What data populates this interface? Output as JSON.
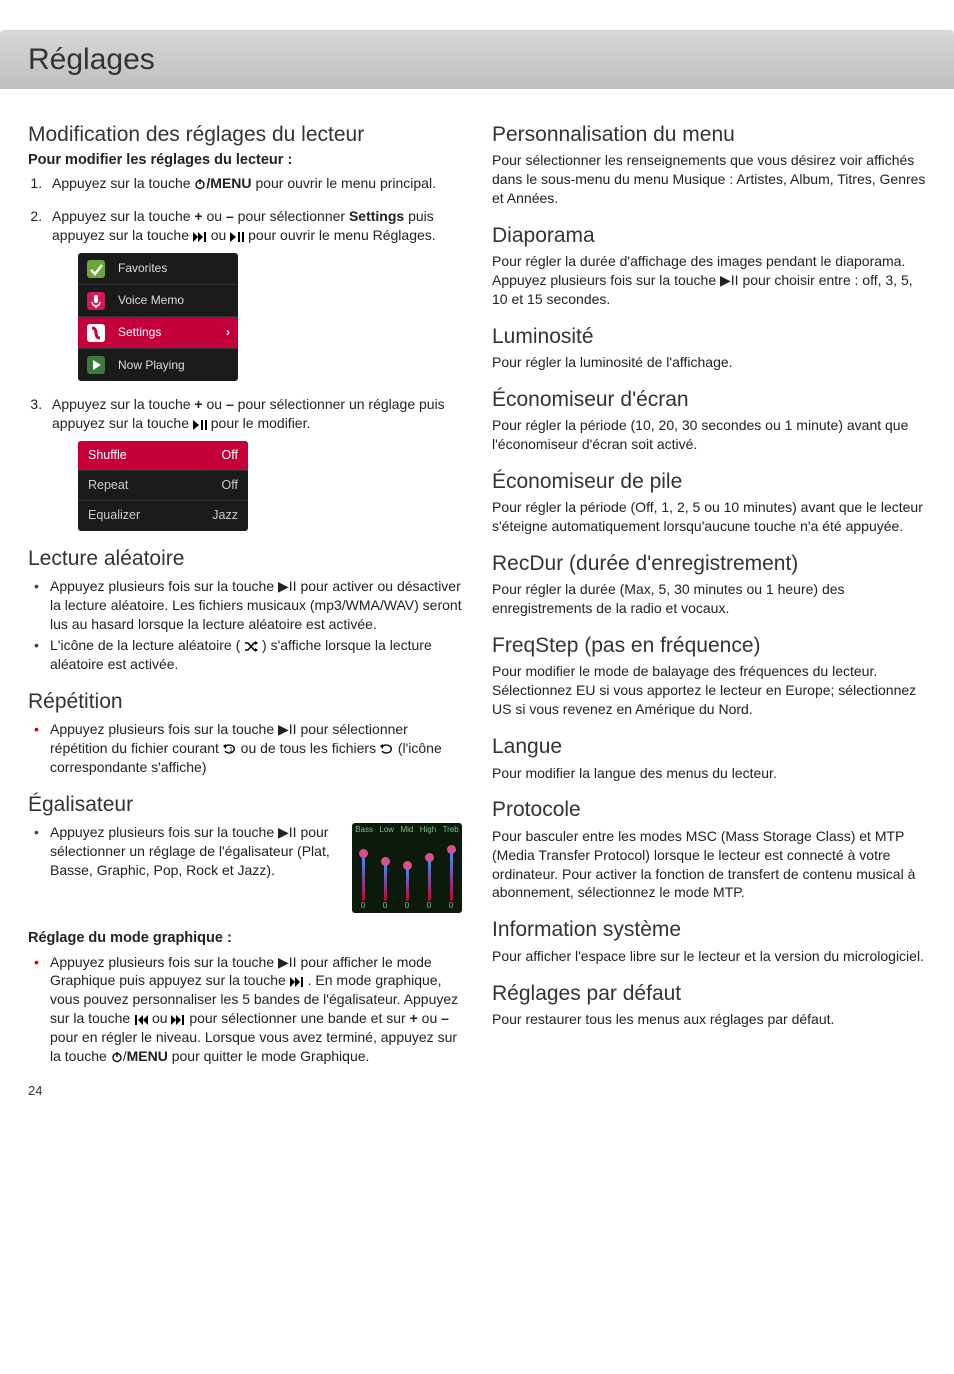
{
  "page_number": "24",
  "title": "Réglages",
  "left": {
    "h_modif": "Modification des réglages du lecteur",
    "sub_modif": "Pour modifier les réglages du lecteur :",
    "step1_a": "Appuyez sur la touche ",
    "step1_b": "/MENU",
    "step1_c": " pour ouvrir le menu principal.",
    "step2_a": "Appuyez sur la touche ",
    "step2_plus": "+",
    "step2_ou": " ou ",
    "step2_minus": "–",
    "step2_b": " pour sélectionner ",
    "step2_settings": "Settings",
    "step2_c": " puis appuyez sur la touche ",
    "step2_d": " ou ",
    "step2_e": " pour ouvrir le menu Réglages.",
    "menu": {
      "favorites": "Favorites",
      "voicememo": "Voice Memo",
      "settings": "Settings",
      "nowplaying": "Now Playing"
    },
    "step3_a": "Appuyez sur la touche ",
    "step3_b": " pour sélectionner un réglage puis appuyez sur la touche ",
    "step3_c": " pour le modifier.",
    "setlist": {
      "shuffle": "Shuffle",
      "shuffle_v": "Off",
      "repeat": "Repeat",
      "repeat_v": "Off",
      "eq": "Equalizer",
      "eq_v": "Jazz"
    },
    "h_shuffle": "Lecture aléatoire",
    "shuffle_b1": "Appuyez plusieurs fois sur la touche ▶II pour activer ou désactiver la lecture aléatoire. Les fichiers musicaux (mp3/WMA/WAV) seront lus au hasard lorsque la lecture aléatoire est activée.",
    "shuffle_b2_a": "L'icône de la lecture aléatoire (  ",
    "shuffle_b2_b": "  )  s'affiche lorsque la lecture aléatoire est activée.",
    "h_repeat": "Répétition",
    "repeat_b1_a": "Appuyez plusieurs fois sur la touche ▶II pour sélectionner répétition du fichier courant ",
    "repeat_b1_b": " ou de tous les fichiers ",
    "repeat_b1_c": "  (l'icône correspondante s'affiche)",
    "h_eq": "Égalisateur",
    "eq_b1": "Appuyez plusieurs fois sur la touche ▶II pour sélectionner un réglage de l'égalisateur (Plat, Basse, Graphic, Pop, Rock et Jazz).",
    "eq_labels": [
      "Bass",
      "Low",
      "Mid",
      "High",
      "Treb"
    ],
    "eq_nums": [
      "0",
      "0",
      "0",
      "0",
      "0"
    ],
    "eq_heights": [
      48,
      40,
      36,
      44,
      52
    ],
    "h_graphmode": "Réglage du mode graphique :",
    "graph_a": "Appuyez plusieurs fois sur la touche ▶II pour afficher le mode Graphique puis appuyez sur la touche ",
    "graph_b": " . En mode graphique, vous pouvez personnaliser les 5 bandes de l'égalisateur. Appuyez sur la touche ",
    "graph_c": " ou ",
    "graph_d": " pour sélectionner une bande et sur ",
    "graph_e": " pour en régler le niveau. Lorsque vous avez terminé, appuyez sur la touche ",
    "graph_menu": "MENU",
    "graph_f": " pour quitter le mode Graphique."
  },
  "right": {
    "h_perso": "Personnalisation du menu",
    "perso_p": "Pour sélectionner les renseignements que vous désirez voir affichés dans le sous-menu du menu Musique : Artistes, Album, Titres, Genres et Années.",
    "h_diap": "Diaporama",
    "diap_p": "Pour régler la durée d'affichage des images pendant le diaporama. Appuyez plusieurs fois sur la touche ▶II pour choisir entre : off, 3, 5, 10 et 15 secondes.",
    "h_lum": "Luminosité",
    "lum_p": "Pour régler la luminosité de l'affichage.",
    "h_ecran": "Économiseur d'écran",
    "ecran_p": "Pour régler la période (10, 20, 30 secondes ou 1 minute) avant que l'économiseur d'écran soit activé.",
    "h_pile": "Économiseur de pile",
    "pile_p": "Pour régler la période (Off, 1, 2, 5 ou 10 minutes) avant que le lecteur s'éteigne automatiquement lorsqu'aucune touche n'a été appuyée.",
    "h_recdur": "RecDur (durée d'enregistrement)",
    "recdur_p": "Pour régler la durée (Max, 5, 30 minutes ou 1 heure) des enregistrements de la radio et vocaux.",
    "h_freq": "FreqStep (pas en fréquence)",
    "freq_p": "Pour modifier le mode de balayage des fréquences du lecteur. Sélectionnez EU si vous apportez le lecteur en Europe; sélectionnez US si vous revenez en Amérique du Nord.",
    "h_lang": "Langue",
    "lang_p": "Pour modifier la langue des menus du lecteur.",
    "h_proto": "Protocole",
    "proto_p": "Pour basculer entre les modes MSC (Mass Storage Class) et MTP (Media Transfer Protocol) lorsque le lecteur est connecté à votre ordinateur. Pour activer la fonction de transfert de contenu musical à abonnement, sélectionnez le mode MTP.",
    "h_info": "Information système",
    "info_p": "Pour afficher l'espace libre sur le lecteur et la version du micrologiciel.",
    "h_def": "Réglages par défaut",
    "def_p": "Pour restaurer tous les menus aux réglages par défaut."
  }
}
